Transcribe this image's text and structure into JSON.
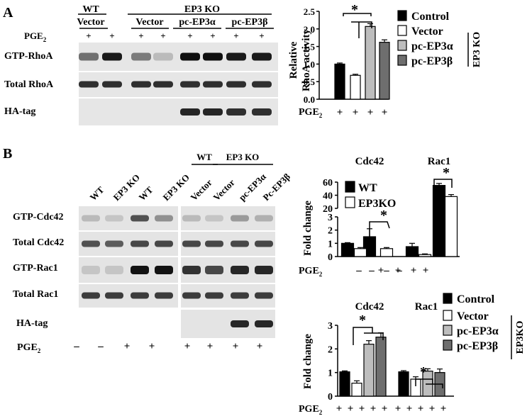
{
  "panelA": {
    "label": "A",
    "header": {
      "wt": "WT",
      "vector1": "Vector",
      "ep3ko": "EP3 KO",
      "vector2": "Vector",
      "pcA": "pc-EP3α",
      "pcB": "pc-EP3β"
    },
    "pge2": "PGE",
    "pge2_sub": "2",
    "plus": "+",
    "rows": [
      "GTP-RhoA",
      "Total RhoA",
      "HA-tag"
    ],
    "bands": {
      "GTP-RhoA": [
        0.55,
        0.95,
        0.5,
        0.2,
        1,
        1,
        0.95,
        0.95
      ],
      "Total RhoA": [
        0.85,
        0.85,
        0.85,
        0.85,
        0.85,
        0.85,
        0.85,
        0.85
      ],
      "HA-tag": [
        0,
        0,
        0,
        0,
        0.9,
        0.9,
        0.85,
        0.85
      ]
    }
  },
  "panelB": {
    "label": "B",
    "lanes_left": [
      "WT",
      "EP3 KO",
      "WT",
      "EP3 KO"
    ],
    "header_right": {
      "wt": "WT",
      "ep3ko": "EP3 KO"
    },
    "lanes_right": [
      "Vector",
      "Vector",
      "pc-EP3α",
      "Pc-EP3β"
    ],
    "rows": [
      "GTP-Cdc42",
      "Total Cdc42",
      "GTP-Rac1",
      "Total Rac1",
      "HA-tag"
    ],
    "pge2": "PGE",
    "pge2_sub": "2",
    "pge2_left": [
      "–",
      "–",
      "+",
      "+"
    ],
    "pge2_right": [
      "+",
      "+",
      "+",
      "+"
    ],
    "bands_left": {
      "GTP-Cdc42": [
        0.2,
        0.15,
        0.7,
        0.4
      ],
      "Total Cdc42": [
        0.7,
        0.65,
        0.75,
        0.75
      ],
      "GTP-Rac1": [
        0.15,
        0.15,
        1,
        1
      ],
      "Total Rac1": [
        0.8,
        0.8,
        0.8,
        0.8
      ]
    },
    "bands_right": {
      "GTP-Cdc42": [
        0.2,
        0.15,
        0.35,
        0.25
      ],
      "Total Cdc42": [
        0.75,
        0.75,
        0.75,
        0.75
      ],
      "GTP-Rac1": [
        0.85,
        0.75,
        0.9,
        0.9
      ],
      "Total Rac1": [
        0.8,
        0.8,
        0.8,
        0.8
      ],
      "HA-tag": [
        0,
        0,
        0.9,
        0.9
      ]
    }
  },
  "colors": {
    "black": "#000000",
    "white": "#ffffff",
    "light_gray": "#bdbdbd",
    "dark_gray": "#6e6e6e"
  },
  "chart_data": [
    {
      "type": "bar",
      "categories": [
        "Control",
        "Vector",
        "pc-EP3α",
        "pc-EP3β"
      ],
      "values": [
        1.0,
        0.68,
        2.07,
        1.62
      ],
      "errors": [
        0.03,
        0.03,
        0.08,
        0.07
      ],
      "ylabel": "Relative RhoA activity",
      "ylim": [
        0,
        2.5
      ],
      "yticks": [
        "0.0",
        "0.5",
        "1.0",
        "1.5",
        "2.0",
        "2.5"
      ],
      "xtick_labels": [
        "+",
        "+",
        "+",
        "+"
      ],
      "xprefix": "PGE",
      "legend": [
        "Control",
        "Vector",
        "pc-EP3α",
        "pc-EP3β"
      ],
      "legend_group": "EP3 KO",
      "star": "*"
    },
    {
      "type": "bar",
      "title_groups": [
        "Cdc42",
        "Rac1"
      ],
      "series": [
        {
          "name": "WT",
          "values": [
            1.0,
            1.5,
            0.75,
            55
          ]
        },
        {
          "name": "EP3KO",
          "values": [
            0.6,
            0.6,
            0.15,
            38
          ]
        }
      ],
      "errors": [
        [
          0.05,
          0.6,
          0.25,
          3
        ],
        [
          0.08,
          0.08,
          0.05,
          3
        ]
      ],
      "pge2": [
        "–",
        "–",
        "+",
        "+",
        "–",
        "–",
        "+",
        "+"
      ],
      "ylabel": "Fold change",
      "yticks_low": [
        "0",
        "1",
        "2",
        "3"
      ],
      "yticks_high": [
        "20",
        "40",
        "60"
      ],
      "star": "*"
    },
    {
      "type": "bar",
      "title_groups": [
        "Cdc42",
        "Rac1"
      ],
      "series": [
        {
          "name": "Control",
          "values": [
            1.03,
            1.03
          ]
        },
        {
          "name": "Vector",
          "values": [
            0.55,
            0.72
          ]
        },
        {
          "name": "pc-EP3α",
          "values": [
            2.2,
            1.06
          ]
        },
        {
          "name": "pc-EP3β",
          "values": [
            2.5,
            1.0
          ]
        }
      ],
      "errors": [
        [
          0.04,
          0.05
        ],
        [
          0.1,
          0.1
        ],
        [
          0.15,
          0.1
        ],
        [
          0.18,
          0.15
        ]
      ],
      "pge2": [
        "+",
        "+",
        "+",
        "+",
        "+",
        "+",
        "+",
        "+",
        "+",
        "+"
      ],
      "ylabel": "Fold change",
      "ylim": [
        0,
        3
      ],
      "yticks": [
        "0",
        "1",
        "2",
        "3"
      ],
      "legend_group": "EP3KO",
      "star": "*"
    }
  ]
}
